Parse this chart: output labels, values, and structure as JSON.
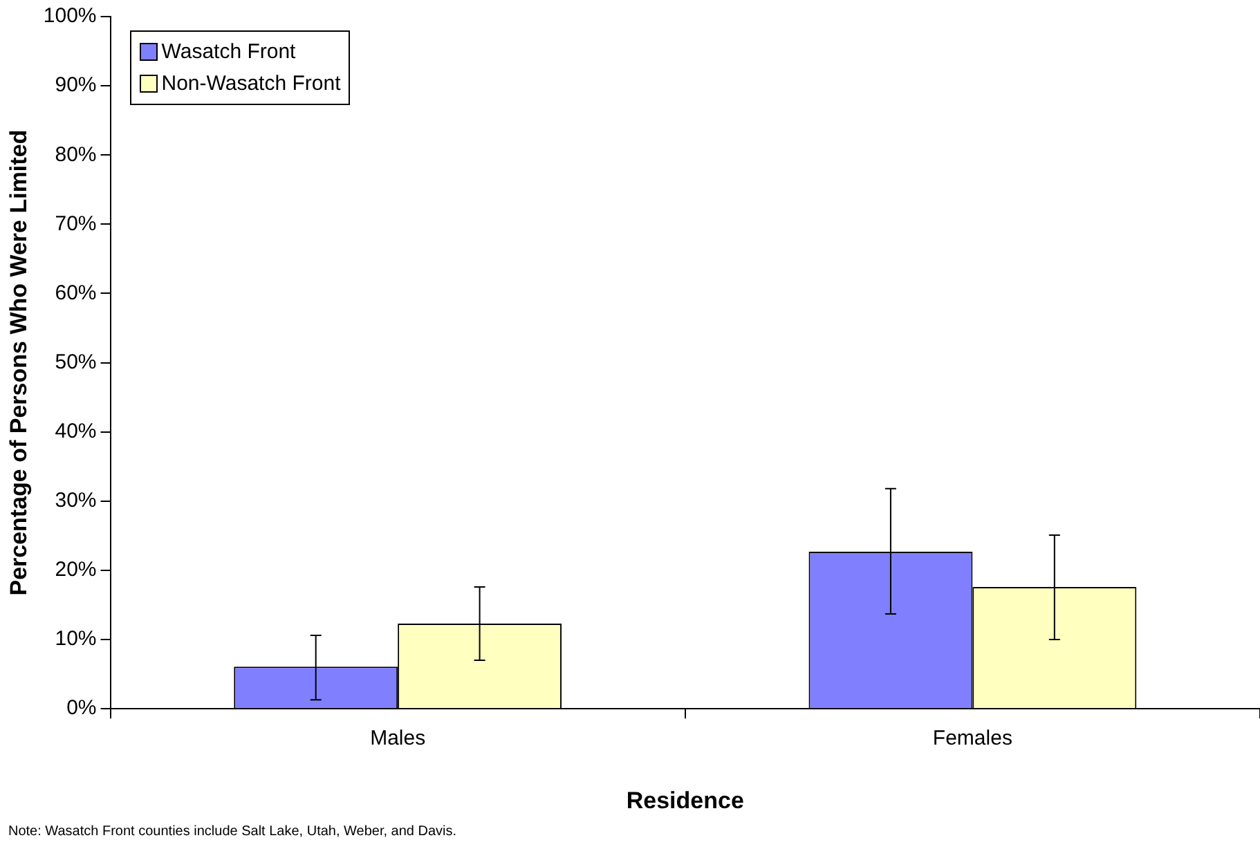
{
  "chart_data": {
    "type": "bar",
    "xlabel": "Residence",
    "ylabel": "Percentage of Persons Who Were Limited",
    "categories": [
      "Males",
      "Females"
    ],
    "series": [
      {
        "name": "Wasatch Front",
        "color": "#8080ff",
        "values": [
          6.1,
          22.7
        ],
        "errors": [
          [
            1.3,
            10.6
          ],
          [
            13.7,
            31.8
          ]
        ]
      },
      {
        "name": "Non-Wasatch Front",
        "color": "#ffffc0",
        "values": [
          12.3,
          17.6
        ],
        "errors": [
          [
            7.0,
            17.6
          ],
          [
            10.0,
            25.1
          ]
        ]
      }
    ],
    "ylim": [
      0,
      100
    ],
    "yticks": [
      {
        "value": 0,
        "label": "0%"
      },
      {
        "value": 10,
        "label": "10%"
      },
      {
        "value": 20,
        "label": "20%"
      },
      {
        "value": 30,
        "label": "30%"
      },
      {
        "value": 40,
        "label": "40%"
      },
      {
        "value": 50,
        "label": "50%"
      },
      {
        "value": 60,
        "label": "60%"
      },
      {
        "value": 70,
        "label": "70%"
      },
      {
        "value": 80,
        "label": "80%"
      },
      {
        "value": 90,
        "label": "90%"
      },
      {
        "value": 100,
        "label": "100%"
      }
    ],
    "legend": "top left",
    "annotations": [
      "Note:  Wasatch Front counties include Salt Lake, Utah, Weber, and Davis."
    ]
  }
}
